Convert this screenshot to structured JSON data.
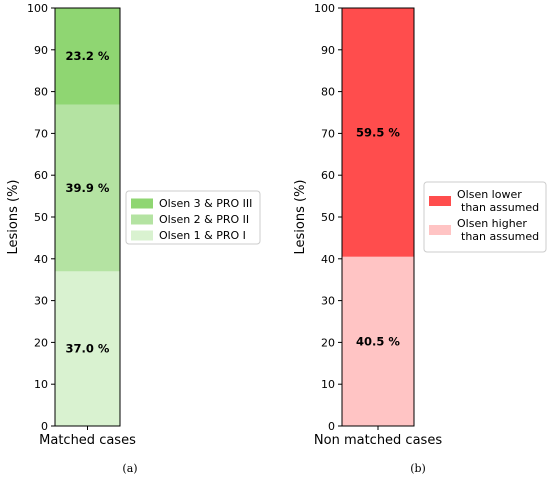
{
  "chart_data": [
    {
      "type": "bar",
      "stacked": true,
      "categories": [
        "Matched cases"
      ],
      "ylabel": "Lesions (%)",
      "ylim": [
        0,
        100
      ],
      "yticks": [
        0,
        10,
        20,
        30,
        40,
        50,
        60,
        70,
        80,
        90,
        100
      ],
      "series": [
        {
          "name": "Olsen 1 & PRO I",
          "values": [
            37.0
          ],
          "label": "37.0 %",
          "color": "#d9f2d0"
        },
        {
          "name": "Olsen 2 & PRO II",
          "values": [
            39.9
          ],
          "label": "39.9 %",
          "color": "#b4e3a2"
        },
        {
          "name": "Olsen 3 & PRO III",
          "values": [
            23.2
          ],
          "label": "23.2 %",
          "color": "#8fd672"
        }
      ],
      "legend": {
        "placement": "right",
        "order": [
          "Olsen 3 & PRO III",
          "Olsen 2 & PRO II",
          "Olsen 1 & PRO I"
        ]
      },
      "grid": false,
      "caption": "(a)"
    },
    {
      "type": "bar",
      "stacked": true,
      "categories": [
        "Non matched cases"
      ],
      "ylabel": "Lesions (%)",
      "ylim": [
        0,
        100
      ],
      "yticks": [
        0,
        10,
        20,
        30,
        40,
        50,
        60,
        70,
        80,
        90,
        100
      ],
      "series": [
        {
          "name": "Olsen higher\nthan assumed",
          "values": [
            40.5
          ],
          "label": "40.5 %",
          "color": "#ffc4c4"
        },
        {
          "name": "Olsen lower\nthan assumed",
          "values": [
            59.5
          ],
          "label": "59.5 %",
          "color": "#ff4d4d"
        }
      ],
      "legend": {
        "placement": "right",
        "order": [
          "Olsen lower\nthan assumed",
          "Olsen higher\nthan assumed"
        ]
      },
      "grid": false,
      "caption": "(b)"
    }
  ]
}
